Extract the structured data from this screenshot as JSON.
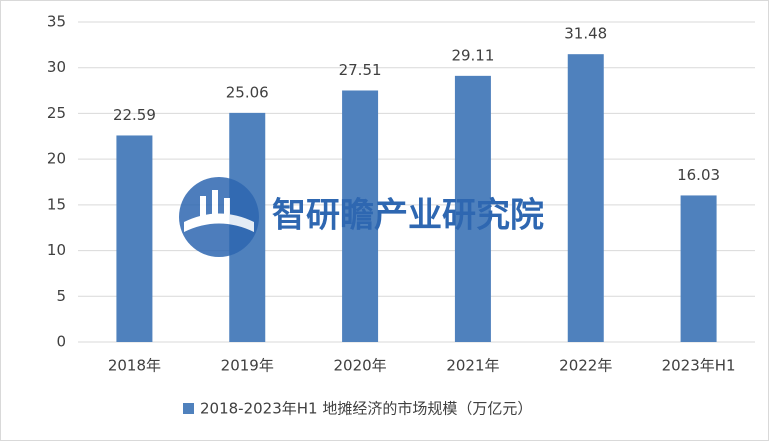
{
  "chart_data": {
    "type": "bar",
    "categories": [
      "2018年",
      "2019年",
      "2020年",
      "2021年",
      "2022年",
      "2023年H1"
    ],
    "series": [
      {
        "name": "2018-2023年H1 地摊经济的市场规模（万亿元）",
        "color": "#4f81bd",
        "values": [
          22.59,
          25.06,
          27.51,
          29.11,
          31.48,
          16.03
        ]
      }
    ],
    "ylim": [
      0,
      35
    ],
    "yticks": [
      0,
      5,
      10,
      15,
      20,
      25,
      30,
      35
    ],
    "grid": true,
    "legend": "bottom",
    "watermark": "智研瞻产业研究院"
  }
}
